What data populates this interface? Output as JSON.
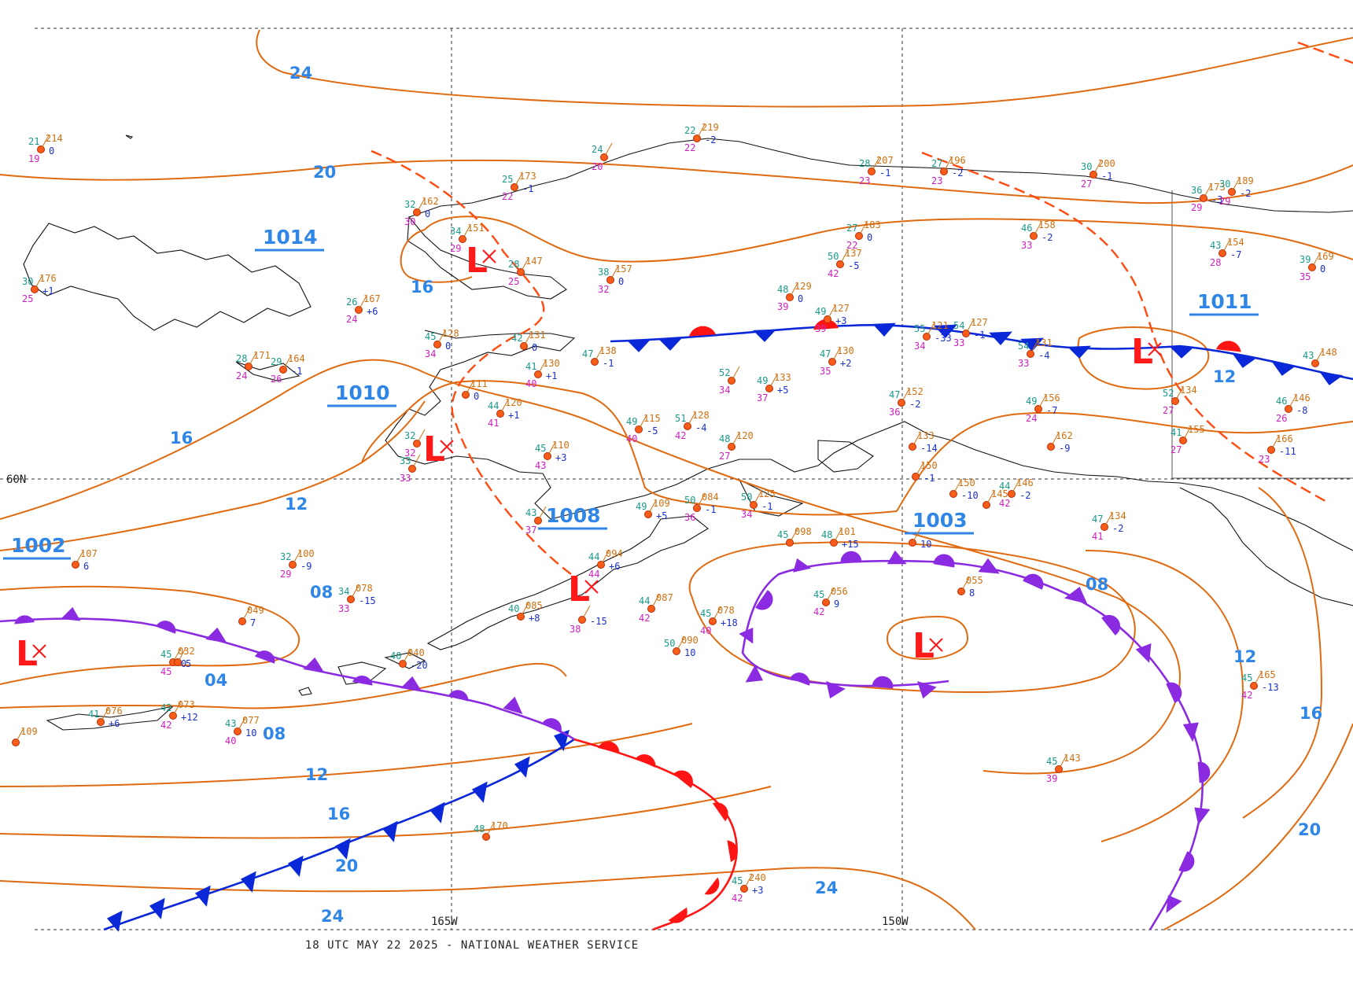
{
  "footer": "18 UTC MAY 22 2025 - NATIONAL WEATHER SERVICE",
  "grid_labels": {
    "lat_60": "60N",
    "lon_165": "165W",
    "lon_150": "150W"
  },
  "colors": {
    "isobar": "#e06a10",
    "iso_label": "#2f86e6",
    "cold_front": "#0a28d8",
    "warm_front": "#ff1414",
    "occluded_front": "#8a2be2",
    "trough": "#ff4a10",
    "low": "#ff1a1a"
  },
  "pressure_centers": [
    {
      "type": "L",
      "value": "1014"
    },
    {
      "type": "L",
      "value": "1010"
    },
    {
      "type": "L",
      "value": "1008"
    },
    {
      "type": "L",
      "value": "1002"
    },
    {
      "type": "L",
      "value": "1003"
    },
    {
      "type": "L",
      "value": "1011"
    }
  ],
  "isobar_labels": [
    "24",
    "20",
    "16",
    "16",
    "12",
    "12",
    "12",
    "08",
    "08",
    "08",
    "04",
    "12",
    "16",
    "20",
    "24",
    "24",
    "20",
    "16",
    "12"
  ],
  "stations": [
    {
      "t": "21",
      "p": "214",
      "d": "19",
      "c": "0"
    },
    {
      "t": "30",
      "p": "176",
      "d": "25",
      "c": "+1"
    },
    {
      "t": "26",
      "p": "167",
      "d": "24",
      "c": "+6"
    },
    {
      "t": "28",
      "p": "171",
      "d": "24",
      "c": ""
    },
    {
      "t": "29",
      "p": "164",
      "d": "26",
      "c": "-1"
    },
    {
      "t": "32",
      "p": "162",
      "d": "30",
      "c": "0"
    },
    {
      "t": "34",
      "p": "151",
      "d": "29",
      "c": ""
    },
    {
      "t": "28",
      "p": "147",
      "d": "25",
      "c": ""
    },
    {
      "t": "38",
      "p": "157",
      "d": "32",
      "c": "0"
    },
    {
      "t": "45",
      "p": "128",
      "d": "34",
      "c": "0"
    },
    {
      "t": "42",
      "p": "131",
      "d": "",
      "c": "0"
    },
    {
      "t": "47",
      "p": "138",
      "d": "",
      "c": "-1"
    },
    {
      "t": "41",
      "p": "130",
      "d": "40",
      "c": "+1"
    },
    {
      "t": "44",
      "p": "120",
      "d": "41",
      "c": "+1"
    },
    {
      "t": "45",
      "p": "110",
      "d": "43",
      "c": "+3"
    },
    {
      "t": "49",
      "p": "115",
      "d": "40",
      "c": "-5"
    },
    {
      "t": "51",
      "p": "128",
      "d": "42",
      "c": "-4"
    },
    {
      "t": "48",
      "p": "120",
      "d": "27",
      "c": ""
    },
    {
      "t": "52",
      "p": "",
      "d": "34",
      "c": ""
    },
    {
      "t": "49",
      "p": "133",
      "d": "37",
      "c": "+5"
    },
    {
      "t": "47",
      "p": "130",
      "d": "35",
      "c": "+2"
    },
    {
      "t": "48",
      "p": "129",
      "d": "39",
      "c": "0"
    },
    {
      "t": "49",
      "p": "127",
      "d": "39",
      "c": "+3"
    },
    {
      "t": "50",
      "p": "137",
      "d": "42",
      "c": "-5"
    },
    {
      "t": "27",
      "p": "183",
      "d": "22",
      "c": "0"
    },
    {
      "t": "22",
      "p": "219",
      "d": "22",
      "c": "-2"
    },
    {
      "t": "24",
      "p": "",
      "d": "20",
      "c": ""
    },
    {
      "t": "25",
      "p": "173",
      "d": "22",
      "c": "-1"
    },
    {
      "t": "28",
      "p": "207",
      "d": "23",
      "c": "-1"
    },
    {
      "t": "27",
      "p": "196",
      "d": "23",
      "c": "-2"
    },
    {
      "t": "30",
      "p": "200",
      "d": "27",
      "c": "-1"
    },
    {
      "t": "46",
      "p": "158",
      "d": "33",
      "c": "-2"
    },
    {
      "t": "55",
      "p": "121",
      "d": "34",
      "c": "-33"
    },
    {
      "t": "54",
      "p": "127",
      "d": "33",
      "c": "-1"
    },
    {
      "t": "54",
      "p": "131",
      "d": "33",
      "c": "-4"
    },
    {
      "t": "47",
      "p": "152",
      "d": "36",
      "c": "-2"
    },
    {
      "t": "49",
      "p": "156",
      "d": "24",
      "c": "-7"
    },
    {
      "t": "36",
      "p": "173",
      "d": "29",
      "c": "-3"
    },
    {
      "t": "30",
      "p": "189",
      "d": "29",
      "c": "-2"
    },
    {
      "t": "43",
      "p": "154",
      "d": "28",
      "c": "-7"
    },
    {
      "t": "39",
      "p": "169",
      "d": "35",
      "c": "0"
    },
    {
      "t": "52",
      "p": "134",
      "d": "27",
      "c": ""
    },
    {
      "t": "41",
      "p": "155",
      "d": "27",
      "c": ""
    },
    {
      "t": "46",
      "p": "146",
      "d": "26",
      "c": "-8"
    },
    {
      "t": "43",
      "p": "148",
      "d": "",
      "c": ""
    },
    {
      "t": "47",
      "p": "134",
      "d": "41",
      "c": "-2"
    },
    {
      "t": "44",
      "p": "146",
      "d": "42",
      "c": "-2"
    },
    {
      "t": "45",
      "p": "165",
      "d": "42",
      "c": "-13"
    },
    {
      "t": "45",
      "p": "143",
      "d": "39",
      "c": ""
    },
    {
      "t": "45",
      "p": "056",
      "d": "42",
      "c": "9"
    },
    {
      "t": "",
      "p": "055",
      "d": "",
      "c": "8"
    },
    {
      "t": "45",
      "p": "078",
      "d": "40",
      "c": "+18"
    },
    {
      "t": "44",
      "p": "087",
      "d": "42",
      "c": ""
    },
    {
      "t": "50",
      "p": "090",
      "d": "",
      "c": "10"
    },
    {
      "t": "44",
      "p": "094",
      "d": "44",
      "c": "+6"
    },
    {
      "t": "50",
      "p": "084",
      "d": "36",
      "c": "-1"
    },
    {
      "t": "49",
      "p": "109",
      "d": "",
      "c": "+5"
    },
    {
      "t": "43",
      "p": "",
      "d": "37",
      "c": ""
    },
    {
      "t": "50",
      "p": "125",
      "d": "34",
      "c": "-1"
    },
    {
      "t": "45",
      "p": "098",
      "d": "",
      "c": ""
    },
    {
      "t": "48",
      "p": "101",
      "d": "",
      "c": "+15"
    },
    {
      "t": "40",
      "p": "085",
      "d": "",
      "c": "+8"
    },
    {
      "t": "",
      "p": "",
      "d": "38",
      "c": "-15"
    },
    {
      "t": "40",
      "p": "040",
      "d": "",
      "c": "-20"
    },
    {
      "t": "34",
      "p": "078",
      "d": "33",
      "c": "-15"
    },
    {
      "t": "32",
      "p": "100",
      "d": "29",
      "c": "-9"
    },
    {
      "t": "",
      "p": "107",
      "d": "",
      "c": "6"
    },
    {
      "t": "",
      "p": "049",
      "d": "",
      "c": "7"
    },
    {
      "t": "45",
      "p": "032",
      "d": "45",
      "c": "0"
    },
    {
      "t": "",
      "p": "",
      "d": "",
      "c": "5"
    },
    {
      "t": "42",
      "p": "073",
      "d": "42",
      "c": "+12"
    },
    {
      "t": "41",
      "p": "076",
      "d": "",
      "c": "+6"
    },
    {
      "t": "43",
      "p": "077",
      "d": "40",
      "c": "10"
    },
    {
      "t": "",
      "p": "109",
      "d": "",
      "c": ""
    },
    {
      "t": "48",
      "p": "170",
      "d": "",
      "c": ""
    },
    {
      "t": "45",
      "p": "240",
      "d": "42",
      "c": "+3"
    },
    {
      "t": "33",
      "p": "",
      "d": "33",
      "c": ""
    },
    {
      "t": "32",
      "p": "",
      "d": "32",
      "c": ""
    },
    {
      "t": "",
      "p": "111",
      "d": "",
      "c": "0"
    },
    {
      "t": "",
      "p": "150",
      "d": "",
      "c": "-10"
    },
    {
      "t": "",
      "p": "162",
      "d": "",
      "c": "-9"
    },
    {
      "t": "",
      "p": "133",
      "d": "",
      "c": "-14"
    },
    {
      "t": "",
      "p": "150",
      "d": "",
      "c": "-1"
    },
    {
      "t": "",
      "p": "145",
      "d": "",
      "c": ""
    },
    {
      "t": "",
      "p": "166",
      "d": "23",
      "c": "-11"
    },
    {
      "t": "",
      "p": "",
      "d": "",
      "c": "10"
    }
  ]
}
